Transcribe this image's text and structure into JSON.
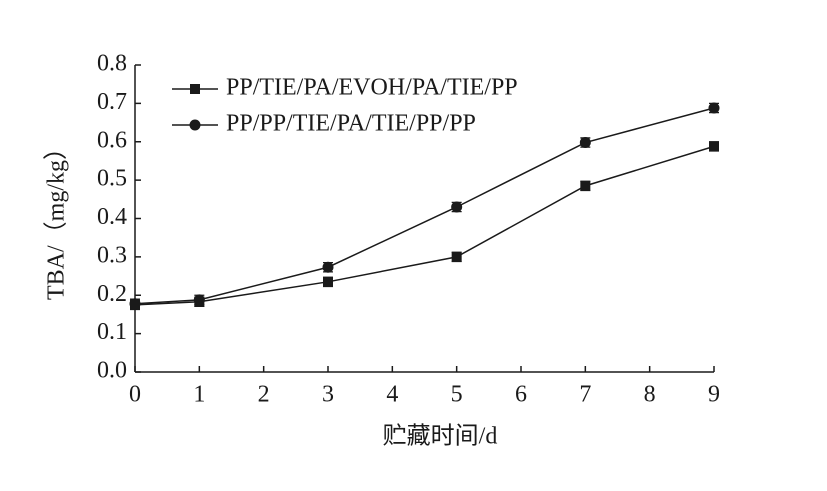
{
  "chart_data": {
    "type": "line",
    "x_label": "贮藏时间/d",
    "y_label": "TBA/（mg/kg）",
    "x": [
      0,
      1,
      3,
      5,
      7,
      9
    ],
    "series": [
      {
        "name": "PP/TIE/PA/EVOH/PA/TIE/PP",
        "color": "#1a1a1a",
        "marker": "square",
        "values": [
          0.175,
          0.183,
          0.235,
          0.3,
          0.485,
          0.588
        ],
        "errors": [
          0.012,
          0.012,
          0.012,
          0.012,
          0.012,
          0.012
        ]
      },
      {
        "name": "PP/PP/TIE/PA/TIE/PP/PP",
        "color": "#1a1a1a",
        "marker": "circle",
        "values": [
          0.178,
          0.188,
          0.273,
          0.43,
          0.598,
          0.688
        ],
        "errors": [
          0.012,
          0.012,
          0.012,
          0.012,
          0.012,
          0.012
        ]
      }
    ],
    "xlim": [
      0,
      9
    ],
    "xticks": [
      0,
      1,
      2,
      3,
      4,
      5,
      6,
      7,
      8,
      9
    ],
    "ylim": [
      0,
      0.8
    ],
    "yticks": [
      {
        "value": 0,
        "label": "0.0"
      },
      0.1,
      0.2,
      0.3,
      0.4,
      0.5,
      0.6,
      0.7,
      0.8
    ],
    "legend": "upper-left",
    "grid": false
  }
}
